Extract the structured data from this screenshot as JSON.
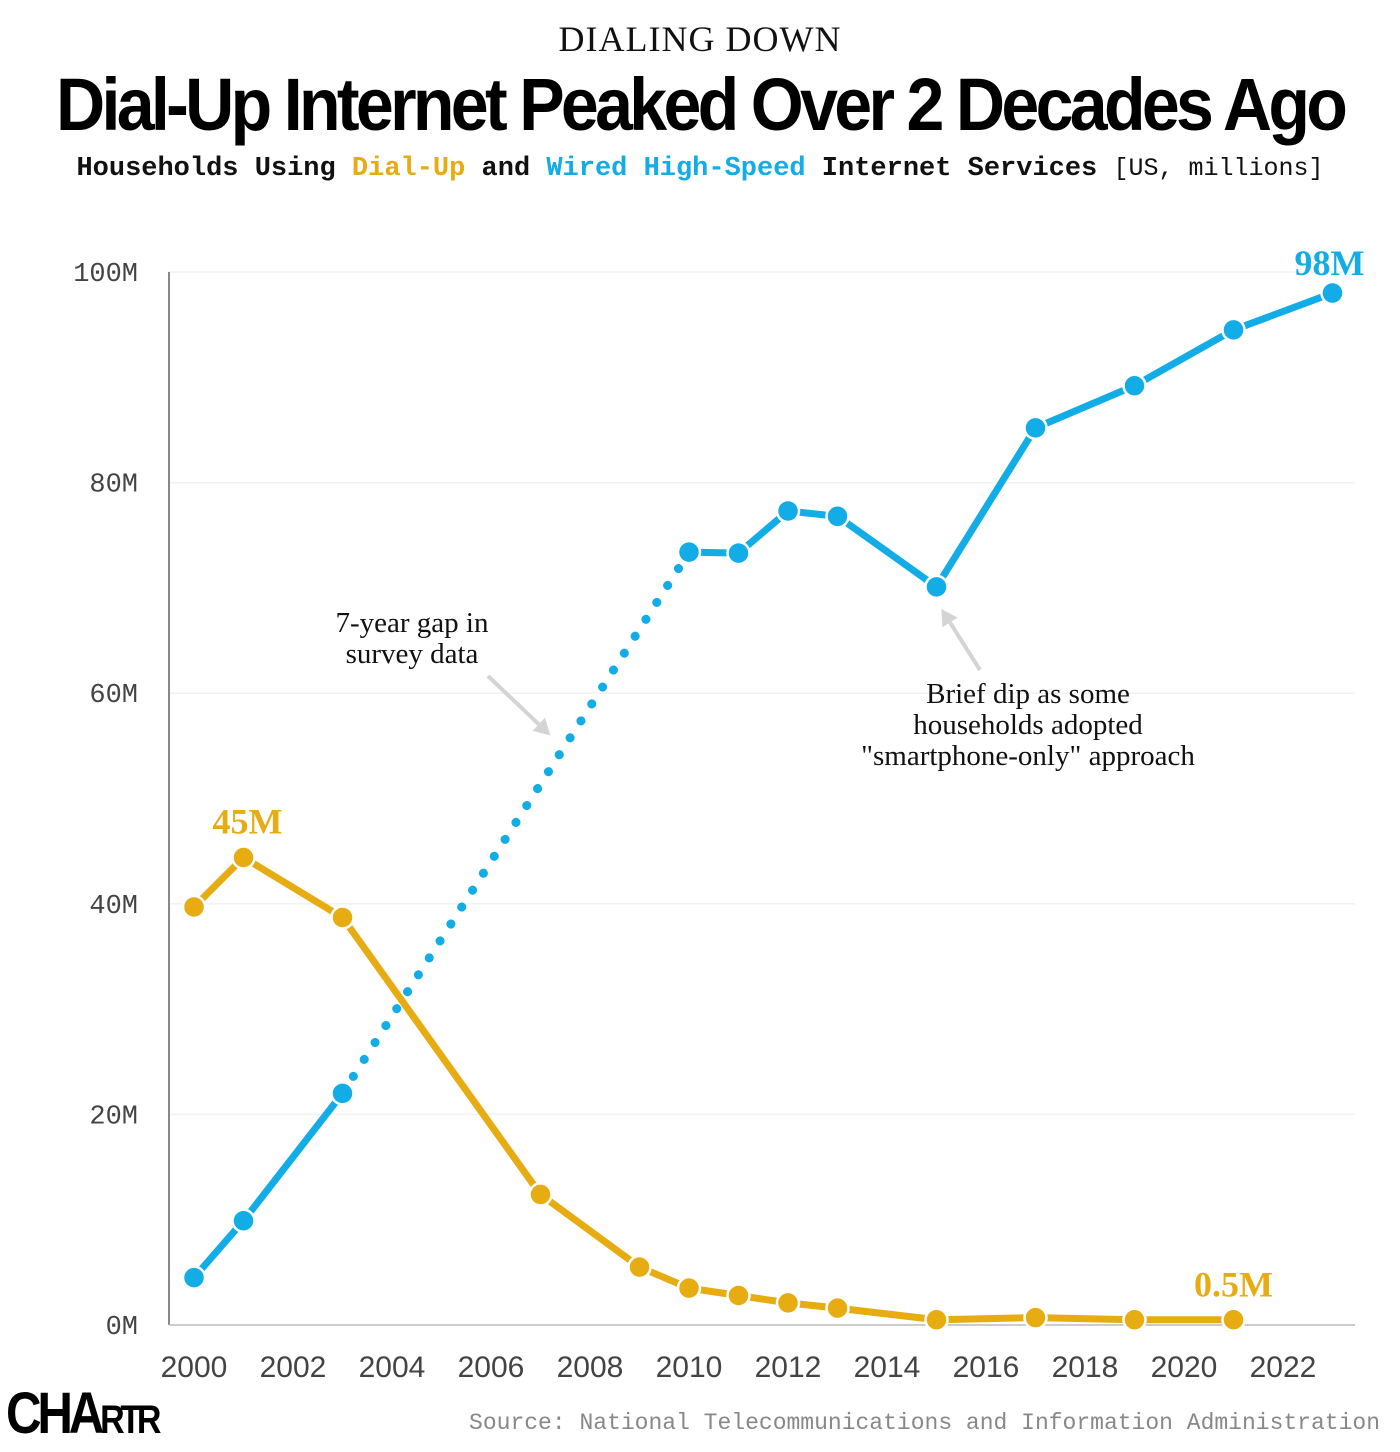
{
  "header": {
    "kicker": "DIALING DOWN",
    "title": "Dial-Up Internet Peaked Over 2 Decades Ago",
    "subtitle": {
      "part1": "Households Using ",
      "dialup": "Dial-Up",
      "part2": " and ",
      "wired": "Wired High-Speed",
      "part3": " Internet Services ",
      "unit": "[US, millions]"
    }
  },
  "colors": {
    "dialup": "#e6ac12",
    "highspeed": "#12ace6",
    "axis": "#888888",
    "grid": "#f2f2f2",
    "arrow": "#d4d4d4"
  },
  "chart_data": {
    "type": "line",
    "title": "Dial-Up Internet Peaked Over 2 Decades Ago",
    "subtitle": "Households Using Dial-Up and Wired High-Speed Internet Services [US, millions]",
    "xlabel": "",
    "ylabel": "",
    "xlim": [
      2000,
      2023
    ],
    "ylim": [
      0,
      100
    ],
    "grid": true,
    "yticks": [
      0,
      20,
      40,
      60,
      80,
      100
    ],
    "ytick_labels": [
      "0M",
      "20M",
      "40M",
      "60M",
      "80M",
      "100M"
    ],
    "xticks": [
      2000,
      2002,
      2004,
      2006,
      2008,
      2010,
      2012,
      2014,
      2016,
      2018,
      2020,
      2022
    ],
    "xtick_labels": [
      "2000",
      "2002",
      "2004",
      "2006",
      "2008",
      "2010",
      "2012",
      "2014",
      "2016",
      "2018",
      "2020",
      "2022"
    ],
    "series": [
      {
        "name": "Wired High-Speed",
        "color": "#12ace6",
        "x": [
          2000,
          2001,
          2003,
          2010,
          2011,
          2012,
          2013,
          2015,
          2017,
          2019,
          2021,
          2023
        ],
        "values": [
          4.5,
          9.9,
          22.0,
          73.4,
          73.3,
          77.3,
          76.8,
          70.1,
          85.2,
          89.2,
          94.5,
          98.0
        ],
        "dotted_gap": [
          2003,
          2010
        ],
        "end_label": "98M",
        "end_label_year": 2023
      },
      {
        "name": "Dial-Up",
        "color": "#e6ac12",
        "x": [
          2000,
          2001,
          2003,
          2007,
          2009,
          2010,
          2011,
          2012,
          2013,
          2015,
          2017,
          2019,
          2021
        ],
        "values": [
          39.7,
          44.4,
          38.7,
          12.4,
          5.5,
          3.5,
          2.8,
          2.1,
          1.6,
          0.5,
          0.7,
          0.5,
          0.5
        ],
        "peak_label": "45M",
        "peak_label_year": 2001,
        "end_label": "0.5M",
        "end_label_year": 2021
      }
    ],
    "annotations": [
      {
        "lines": [
          "7-year gap in",
          "survey data"
        ],
        "points_to": {
          "x": 2007.2,
          "y": 56
        }
      },
      {
        "lines": [
          "Brief dip as some",
          "households adopted",
          "\"smartphone-only\" approach"
        ],
        "points_to": {
          "x": 2015.1,
          "y": 68
        }
      }
    ]
  },
  "footer": {
    "logo_big": "CHA",
    "logo_small": "RTR",
    "source": "Source: National Telecommunications and Information Administration"
  }
}
